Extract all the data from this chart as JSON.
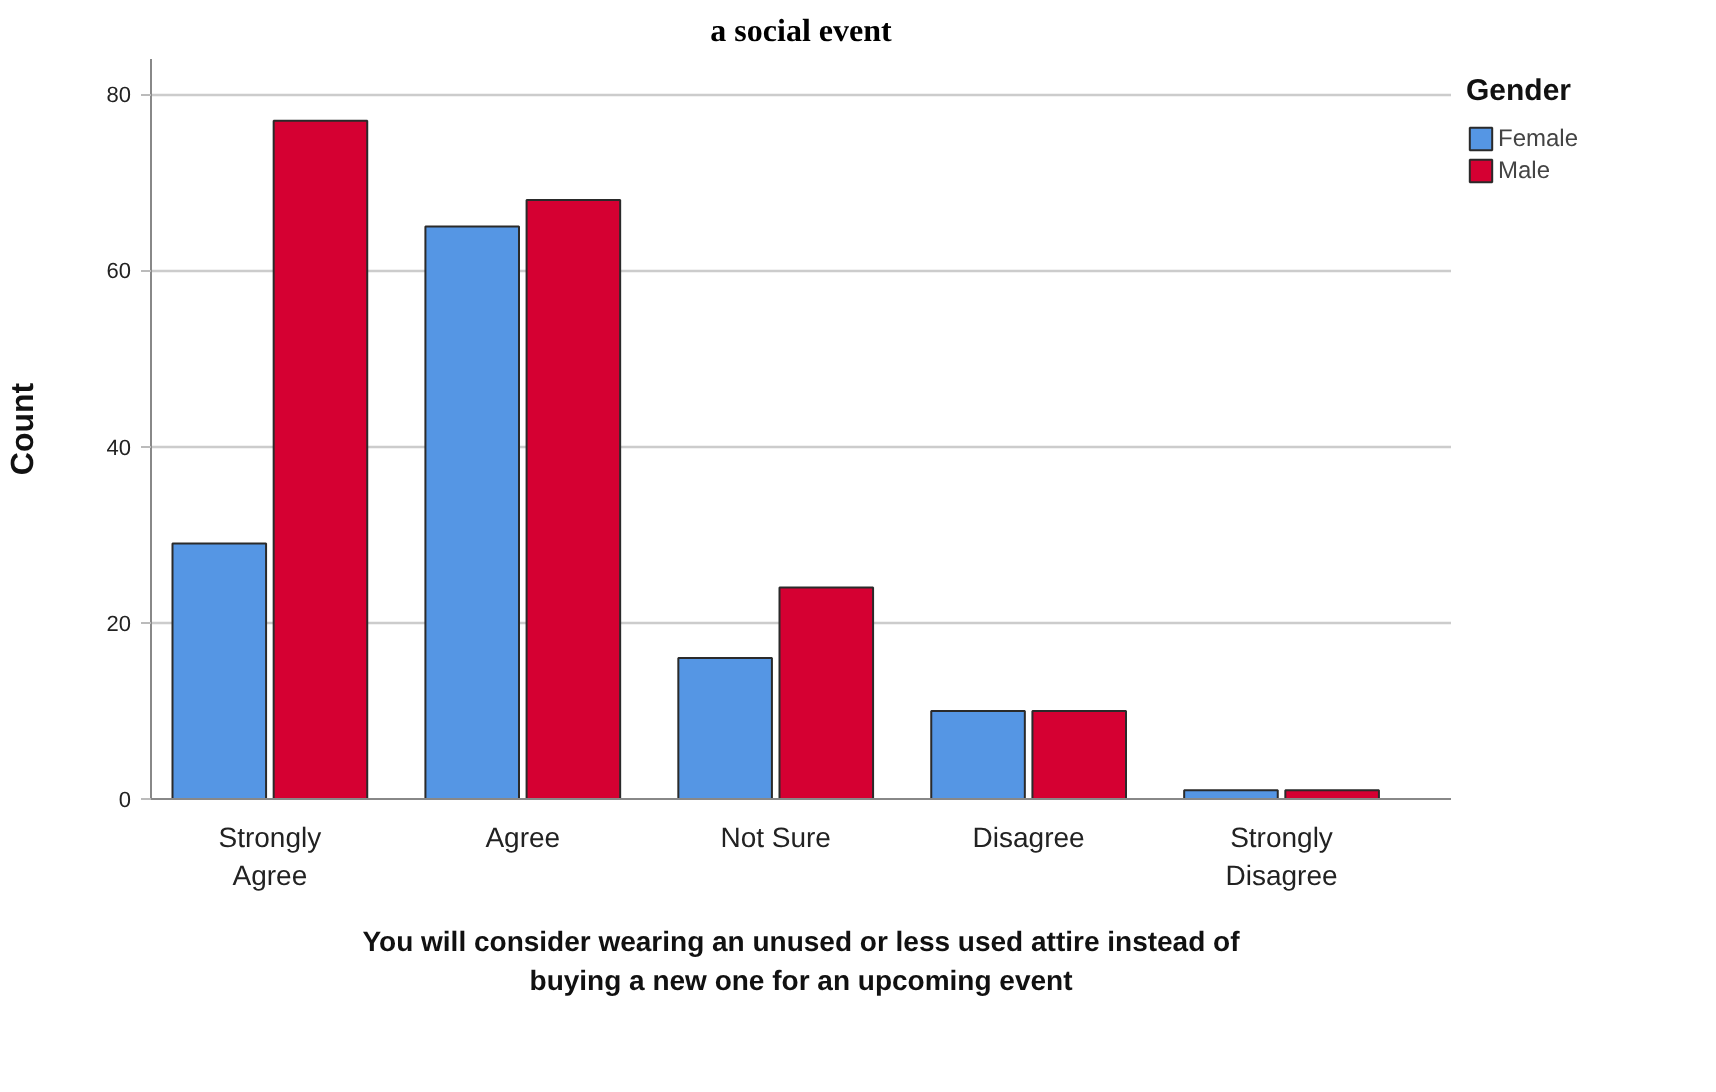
{
  "chart_data": {
    "type": "bar",
    "title": "a social event",
    "xlabel": "You will consider wearing an unused or less used attire instead of buying a new one for an upcoming event",
    "ylabel": "Count",
    "legend_title": "Gender",
    "categories": [
      "Strongly Agree",
      "Agree",
      "Not Sure",
      "Disagree",
      "Strongly Disagree"
    ],
    "series": [
      {
        "name": "Female",
        "color": "#5596e4",
        "values": [
          29,
          65,
          16,
          10,
          1
        ]
      },
      {
        "name": "Male",
        "color": "#d50032",
        "values": [
          77,
          68,
          24,
          10,
          1
        ]
      }
    ],
    "ylim": [
      0,
      84
    ],
    "yticks": [
      0,
      20,
      40,
      60,
      80
    ],
    "grid": "y",
    "legend": "top right"
  }
}
